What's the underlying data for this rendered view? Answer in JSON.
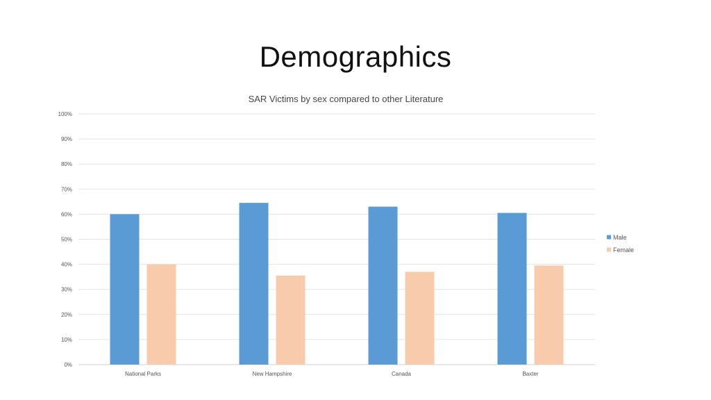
{
  "slide": {
    "title": "Demographics"
  },
  "chart_data": {
    "type": "bar",
    "title": "SAR Victims by sex compared to other Literature",
    "categories": [
      "National Parks",
      "New Hampshire",
      "Canada",
      "Baxter"
    ],
    "series": [
      {
        "name": "Male",
        "color": "#5B9BD5",
        "values": [
          60,
          64.5,
          63,
          60.5
        ]
      },
      {
        "name": "Female",
        "color": "#F8CBAD",
        "values": [
          40,
          35.5,
          37,
          39.5
        ]
      }
    ],
    "yticks": [
      "0%",
      "10%",
      "20%",
      "30%",
      "40%",
      "50%",
      "60%",
      "70%",
      "80%",
      "90%",
      "100%"
    ],
    "ylim": [
      0,
      100
    ],
    "grid": true,
    "legend": "right"
  }
}
